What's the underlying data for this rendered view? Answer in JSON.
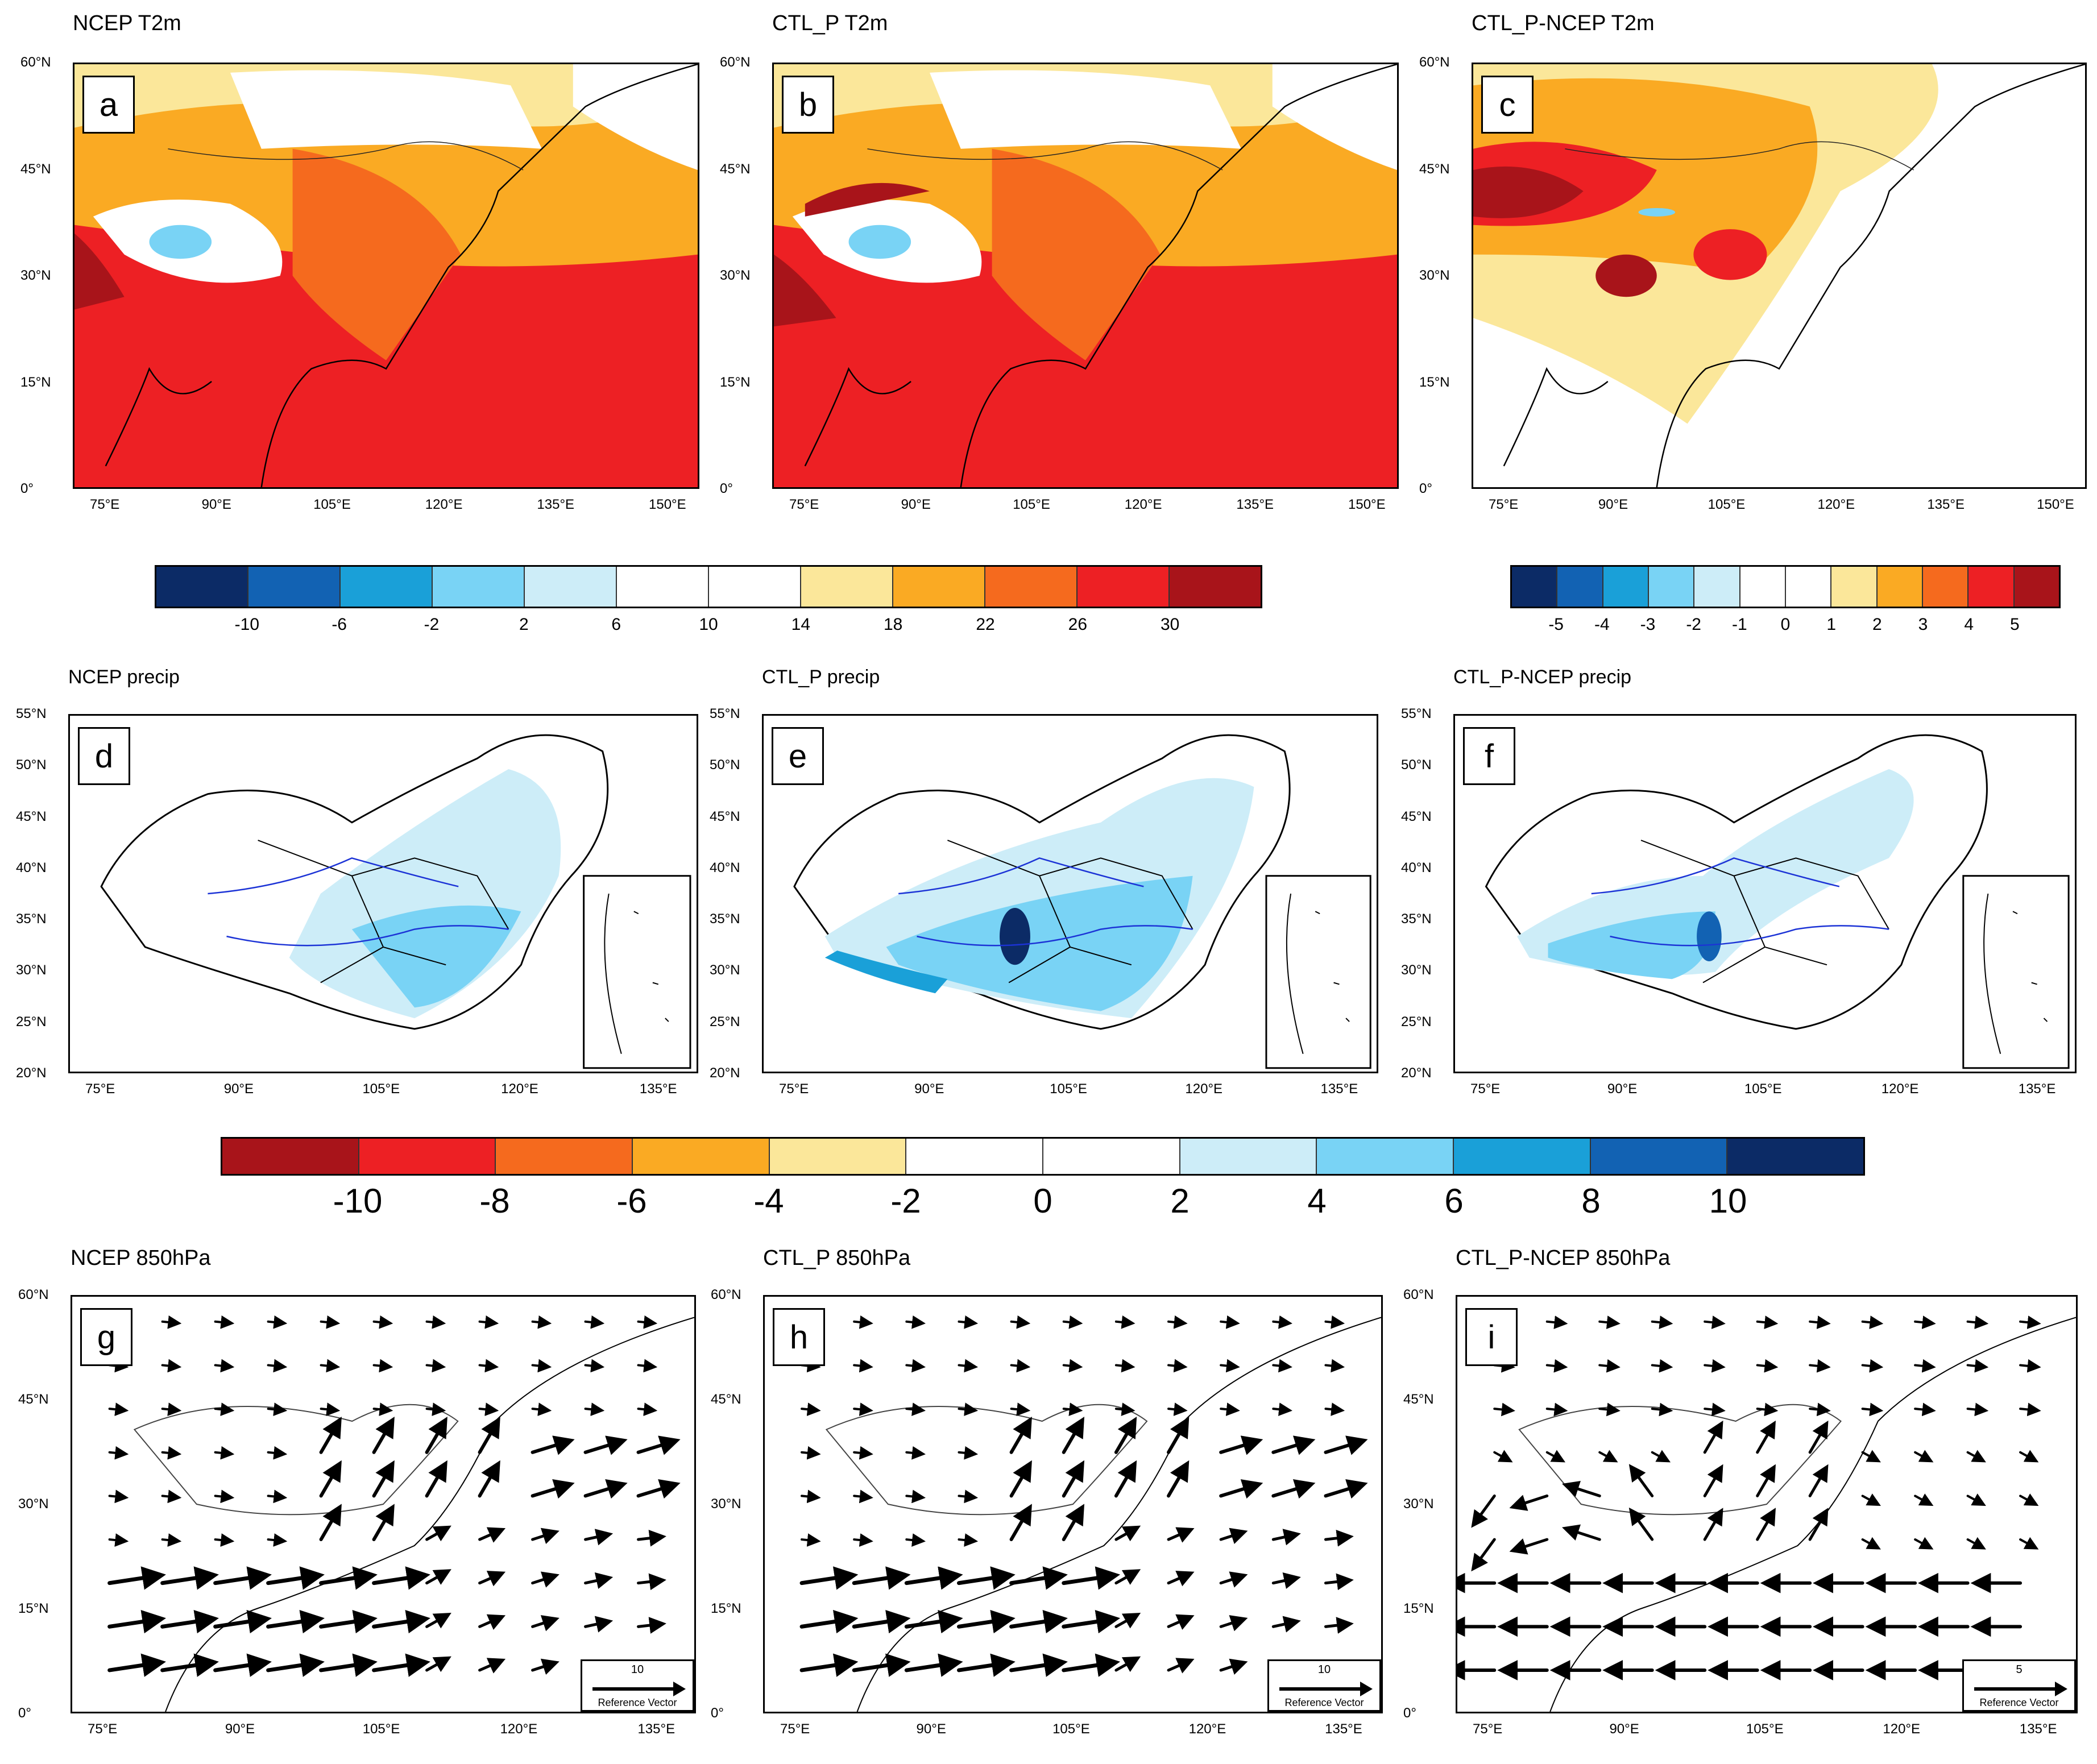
{
  "colors": {
    "temp_scale": [
      "#0c2b66",
      "#1262b3",
      "#1aa0d8",
      "#79d3f5",
      "#cdedf8",
      "#ffffff",
      "#ffffff",
      "#fbe79a",
      "#faaa23",
      "#f56a1e",
      "#ed2024",
      "#a8141a"
    ],
    "diff_scale": [
      "#0c2b66",
      "#1262b3",
      "#1aa0d8",
      "#79d3f5",
      "#cdedf8",
      "#ffffff",
      "#ffffff",
      "#fbe79a",
      "#faaa23",
      "#f56a1e",
      "#ed2024",
      "#a8141a"
    ],
    "precip_scale": [
      "#a8141a",
      "#ed2024",
      "#f56a1e",
      "#faaa23",
      "#fbe79a",
      "#ffffff",
      "#ffffff",
      "#cdedf8",
      "#79d3f5",
      "#1aa0d8",
      "#1262b3",
      "#0c2b66"
    ]
  },
  "panels": [
    {
      "letter": "a",
      "title": "NCEP T2m",
      "kind": "t2m"
    },
    {
      "letter": "b",
      "title": "CTL_P T2m",
      "kind": "t2m"
    },
    {
      "letter": "c",
      "title": "CTL_P-NCEP T2m",
      "kind": "diff"
    },
    {
      "letter": "d",
      "title": "NCEP precip",
      "kind": "precip"
    },
    {
      "letter": "e",
      "title": "CTL_P precip",
      "kind": "precip"
    },
    {
      "letter": "f",
      "title": "CTL_P-NCEP precip",
      "kind": "precipdiff"
    },
    {
      "letter": "g",
      "title": "NCEP 850hPa",
      "kind": "wind",
      "ref_value": "10",
      "ref_label": "Reference Vector"
    },
    {
      "letter": "h",
      "title": "CTL_P 850hPa",
      "kind": "wind",
      "ref_value": "10",
      "ref_label": "Reference Vector"
    },
    {
      "letter": "i",
      "title": "CTL_P-NCEP 850hPa",
      "kind": "wind",
      "ref_value": "5",
      "ref_label": "Reference Vector"
    }
  ],
  "axes": {
    "t2m_lat": [
      "60°N",
      "45°N",
      "30°N",
      "15°N",
      "0°"
    ],
    "t2m_lon": [
      "75°E",
      "90°E",
      "105°E",
      "120°E",
      "135°E",
      "150°E"
    ],
    "precip_lat": [
      "55°N",
      "50°N",
      "45°N",
      "40°N",
      "35°N",
      "30°N",
      "25°N",
      "20°N"
    ],
    "precip_lon": [
      "75°E",
      "90°E",
      "105°E",
      "120°E",
      "135°E"
    ],
    "wind_lat": [
      "60°N",
      "45°N",
      "30°N",
      "15°N",
      "0°"
    ],
    "wind_lon": [
      "75°E",
      "90°E",
      "105°E",
      "120°E",
      "135°E"
    ]
  },
  "colorbars": {
    "t2m": [
      "-10",
      "-6",
      "-2",
      "2",
      "6",
      "10",
      "14",
      "18",
      "22",
      "26",
      "30"
    ],
    "diff": [
      "-5",
      "-4",
      "-3",
      "-2",
      "-1",
      "0",
      "1",
      "2",
      "3",
      "4",
      "5"
    ],
    "precip": [
      "-10",
      "-8",
      "-6",
      "-4",
      "-2",
      "0",
      "2",
      "4",
      "6",
      "8",
      "10"
    ]
  }
}
